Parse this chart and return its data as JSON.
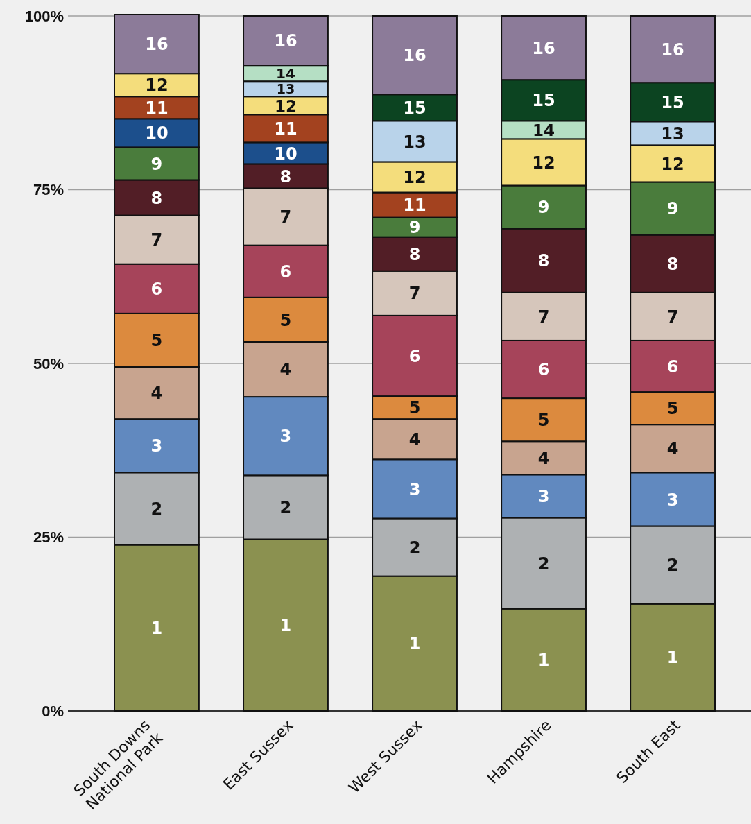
{
  "chart_data": {
    "type": "bar",
    "stacked": true,
    "categories": [
      "South Downs National Park",
      "East Sussex",
      "West Sussex",
      "Hampshire",
      "South East"
    ],
    "ylim": [
      0,
      100
    ],
    "yticks": [
      {
        "value": 0,
        "label": "0%"
      },
      {
        "value": 25,
        "label": "25%"
      },
      {
        "value": 50,
        "label": "50%"
      },
      {
        "value": 75,
        "label": "75%"
      },
      {
        "value": 100,
        "label": "100%"
      }
    ],
    "grid": "y",
    "legend": false,
    "series": [
      {
        "name": "1",
        "color": "#8b9150",
        "values": [
          23.9,
          24.7,
          19.4,
          14.7,
          15.4
        ]
      },
      {
        "name": "2",
        "color": "#aeb1b3",
        "values": [
          10.4,
          9.2,
          8.3,
          13.1,
          11.2
        ]
      },
      {
        "name": "3",
        "color": "#6189bf",
        "values": [
          7.7,
          11.3,
          8.5,
          6.2,
          7.7
        ]
      },
      {
        "name": "4",
        "color": "#c8a48f",
        "values": [
          7.5,
          7.9,
          5.8,
          4.8,
          6.9
        ]
      },
      {
        "name": "5",
        "color": "#dc8a3e",
        "values": [
          7.7,
          6.4,
          3.3,
          6.2,
          4.7
        ]
      },
      {
        "name": "6",
        "color": "#a6445a",
        "values": [
          7.1,
          7.5,
          11.6,
          8.3,
          7.4
        ]
      },
      {
        "name": "7",
        "color": "#d6c6bb",
        "values": [
          7.0,
          8.2,
          6.4,
          6.9,
          6.9
        ]
      },
      {
        "name": "8",
        "color": "#521e26",
        "values": [
          5.1,
          3.5,
          4.9,
          9.2,
          8.3
        ]
      },
      {
        "name": "9",
        "color": "#4a7c3c",
        "values": [
          4.7,
          null,
          2.8,
          6.2,
          7.6
        ]
      },
      {
        "name": "10",
        "color": "#1c4f8c",
        "values": [
          4.1,
          3.1,
          null,
          null,
          null
        ]
      },
      {
        "name": "11",
        "color": "#a3421f",
        "values": [
          3.2,
          4.0,
          3.6,
          null,
          null
        ]
      },
      {
        "name": "12",
        "color": "#f4dd7c",
        "values": [
          3.3,
          2.6,
          4.4,
          6.7,
          5.3
        ]
      },
      {
        "name": "13",
        "color": "#b9d3ea",
        "values": [
          null,
          2.2,
          5.9,
          null,
          3.4
        ]
      },
      {
        "name": "14",
        "color": "#b5dfc4",
        "values": [
          null,
          2.3,
          null,
          2.6,
          null
        ]
      },
      {
        "name": "15",
        "color": "#0c4421",
        "values": [
          null,
          null,
          3.8,
          5.9,
          5.6
        ]
      },
      {
        "name": "16",
        "color": "#8c7b99",
        "values": [
          8.5,
          7.1,
          11.3,
          9.2,
          9.6
        ]
      }
    ]
  }
}
